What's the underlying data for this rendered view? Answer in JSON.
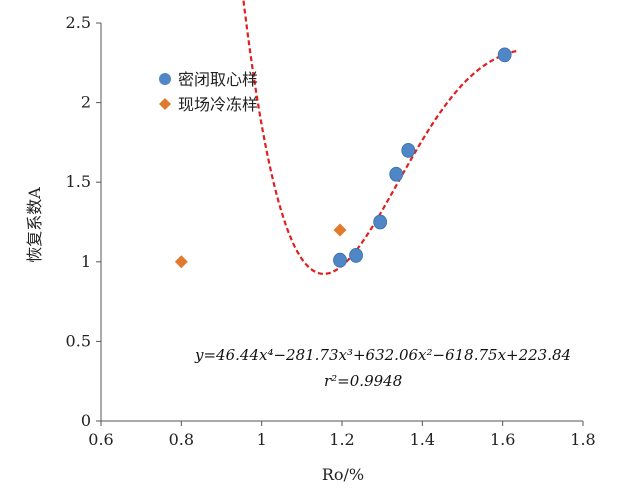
{
  "chart_data": {
    "type": "scatter",
    "title": "",
    "xlabel": "Ro/%",
    "ylabel": "恢复系数A",
    "xlim": [
      0.6,
      1.8
    ],
    "ylim": [
      0,
      2.5
    ],
    "x_ticks": [
      "0.6",
      "0.8",
      "1",
      "1.2",
      "1.4",
      "1.6",
      "1.8"
    ],
    "y_ticks": [
      "0",
      "0.5",
      "1",
      "1.5",
      "2",
      "2.5"
    ],
    "grid": false,
    "legend_position": "top-left",
    "series": [
      {
        "name": "密闭取心样",
        "marker": "circle",
        "color": "#4f86c6",
        "points": [
          [
            1.195,
            1.01
          ],
          [
            1.235,
            1.04
          ],
          [
            1.295,
            1.25
          ],
          [
            1.335,
            1.55
          ],
          [
            1.365,
            1.7
          ],
          [
            1.605,
            2.3
          ]
        ]
      },
      {
        "name": "现场冷冻样",
        "marker": "diamond",
        "color": "#e07b2e",
        "points": [
          [
            0.8,
            1.0
          ],
          [
            1.195,
            1.2
          ]
        ]
      }
    ],
    "fit": {
      "color": "#e02020",
      "style": "dashed",
      "x_range": [
        0.86,
        1.64
      ],
      "coefficients": [
        46.44,
        -281.73,
        632.06,
        -618.75,
        223.84
      ],
      "equation_text": "y=46.44x⁴−281.73x³+632.06x²−618.75x+223.84",
      "r2_text": "r²=0.9948"
    }
  }
}
